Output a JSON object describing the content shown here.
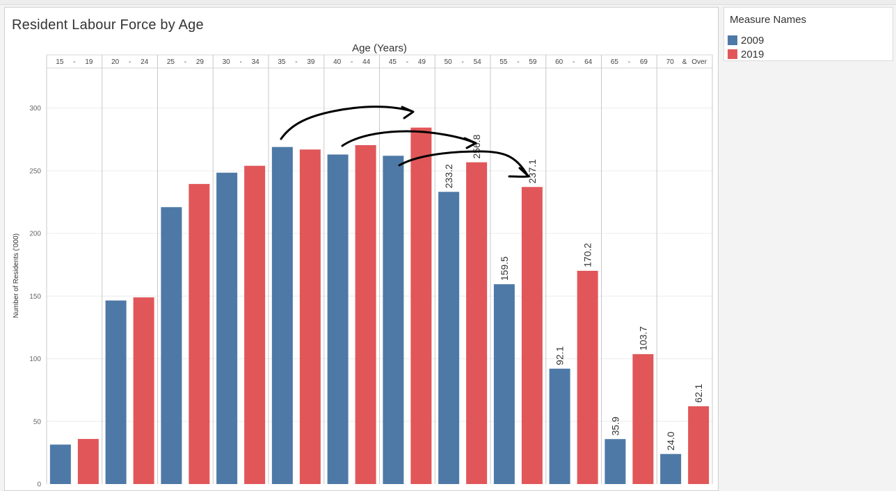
{
  "sheet": {
    "title": "Resident Labour Force by Age"
  },
  "legend": {
    "title": "Measure Names",
    "items": [
      {
        "label": "2009",
        "color": "#4e79a7"
      },
      {
        "label": "2019",
        "color": "#e15759"
      }
    ]
  },
  "chart_data": {
    "type": "bar",
    "title": "Resident Labour Force by Age",
    "xlabel": "Age (Years)",
    "ylabel": "Number of Residents ('000)",
    "categories": [
      [
        "15",
        "-",
        "19"
      ],
      [
        "20",
        "-",
        "24"
      ],
      [
        "25",
        "-",
        "29"
      ],
      [
        "30",
        "-",
        "34"
      ],
      [
        "35",
        "-",
        "39"
      ],
      [
        "40",
        "-",
        "44"
      ],
      [
        "45",
        "-",
        "49"
      ],
      [
        "50",
        "-",
        "54"
      ],
      [
        "55",
        "-",
        "59"
      ],
      [
        "60",
        "-",
        "64"
      ],
      [
        "65",
        "-",
        "69"
      ],
      [
        "70",
        "&",
        "Over"
      ]
    ],
    "series": [
      {
        "name": "2009",
        "color": "#4e79a7",
        "values": [
          31.5,
          146.5,
          221.0,
          248.5,
          269.0,
          263.0,
          262.0,
          233.2,
          159.5,
          92.1,
          35.9,
          24.0
        ],
        "data_labels": [
          "",
          "",
          "",
          "",
          "",
          "",
          "",
          "233.2",
          "159.5",
          "92.1",
          "35.9",
          "24.0"
        ]
      },
      {
        "name": "2019",
        "color": "#e15759",
        "values": [
          36.0,
          149.0,
          239.5,
          254.0,
          267.0,
          270.5,
          284.5,
          256.8,
          237.1,
          170.2,
          103.7,
          62.1
        ],
        "data_labels": [
          "",
          "",
          "",
          "",
          "",
          "",
          "",
          "256.8",
          "237.1",
          "170.2",
          "103.7",
          "62.1"
        ]
      }
    ],
    "yticks": [
      0,
      50,
      100,
      150,
      200,
      250,
      300
    ],
    "ylim": [
      0,
      332
    ],
    "grid": true,
    "legend_position": "right",
    "annotations": [
      {
        "type": "freehand-arrow",
        "from": {
          "category": 4,
          "series": "2009"
        },
        "to": {
          "category": 6,
          "series": "2019"
        }
      },
      {
        "type": "freehand-arrow",
        "from": {
          "category": 5,
          "series": "2009"
        },
        "to": {
          "category": 7,
          "series": "2019"
        }
      },
      {
        "type": "freehand-arrow",
        "from": {
          "category": 6,
          "series": "2009"
        },
        "to": {
          "category": 8,
          "series": "2019"
        }
      }
    ]
  }
}
